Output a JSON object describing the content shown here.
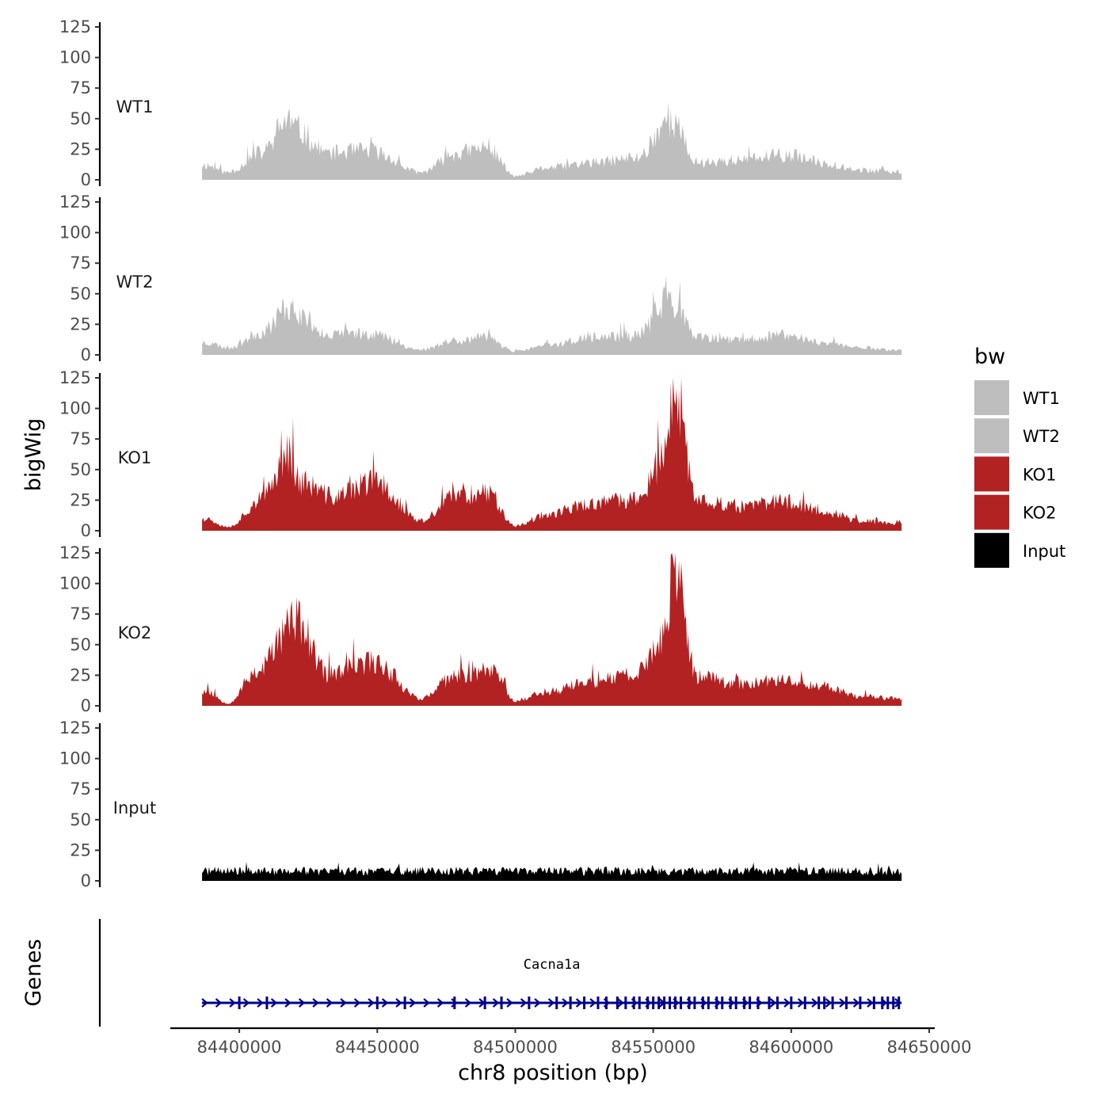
{
  "chart_data": {
    "type": "area",
    "title": "",
    "xlabel": "chr8 position (bp)",
    "ylabel": "bigWig",
    "genes_label": "Genes",
    "xlim": [
      84375000,
      84652000
    ],
    "x_ticks": [
      84400000,
      84450000,
      84500000,
      84550000,
      84600000,
      84650000
    ],
    "x_tick_labels": [
      "84400000",
      "84450000",
      "84500000",
      "84550000",
      "84600000",
      "84650000"
    ],
    "ylim": [
      0,
      125
    ],
    "y_ticks": [
      0,
      25,
      50,
      75,
      100,
      125
    ],
    "y_tick_labels": [
      "0",
      "25",
      "50",
      "75",
      "100",
      "125"
    ],
    "signal_range_bp": [
      84386500,
      84640000
    ],
    "series": [
      {
        "name": "WT1",
        "color": "#bebebe",
        "peaks": [
          [
            84388000,
            12
          ],
          [
            84396000,
            6
          ],
          [
            84408000,
            22
          ],
          [
            84418000,
            50
          ],
          [
            84420000,
            42
          ],
          [
            84432000,
            22
          ],
          [
            84447000,
            24
          ],
          [
            84466000,
            6
          ],
          [
            84479000,
            22
          ],
          [
            84490000,
            26
          ],
          [
            84500000,
            3
          ],
          [
            84512000,
            10
          ],
          [
            84528000,
            14
          ],
          [
            84544000,
            18
          ],
          [
            84556000,
            50
          ],
          [
            84566000,
            14
          ],
          [
            84580000,
            16
          ],
          [
            84598000,
            20
          ],
          [
            84612000,
            14
          ],
          [
            84625000,
            8
          ],
          [
            84638000,
            6
          ]
        ],
        "noise": 0.32,
        "seed": 11
      },
      {
        "name": "WT2",
        "color": "#bebebe",
        "peaks": [
          [
            84388000,
            10
          ],
          [
            84396000,
            6
          ],
          [
            84408000,
            18
          ],
          [
            84418000,
            40
          ],
          [
            84421000,
            32
          ],
          [
            84434000,
            16
          ],
          [
            84447000,
            18
          ],
          [
            84466000,
            4
          ],
          [
            84478000,
            12
          ],
          [
            84490000,
            14
          ],
          [
            84500000,
            3
          ],
          [
            84512000,
            8
          ],
          [
            84528000,
            14
          ],
          [
            84544000,
            16
          ],
          [
            84556000,
            46
          ],
          [
            84566000,
            14
          ],
          [
            84580000,
            12
          ],
          [
            84598000,
            16
          ],
          [
            84612000,
            10
          ],
          [
            84625000,
            6
          ],
          [
            84638000,
            4
          ]
        ],
        "noise": 0.32,
        "seed": 23
      },
      {
        "name": "KO1",
        "color": "#b22222",
        "peaks": [
          [
            84388000,
            10
          ],
          [
            84396000,
            3
          ],
          [
            84408000,
            26
          ],
          [
            84418000,
            64
          ],
          [
            84422000,
            40
          ],
          [
            84434000,
            28
          ],
          [
            84449000,
            40
          ],
          [
            84466000,
            8
          ],
          [
            84478000,
            28
          ],
          [
            84490000,
            32
          ],
          [
            84500000,
            4
          ],
          [
            84512000,
            14
          ],
          [
            84528000,
            22
          ],
          [
            84544000,
            26
          ],
          [
            84555000,
            62
          ],
          [
            84557000,
            110
          ],
          [
            84566000,
            26
          ],
          [
            84582000,
            20
          ],
          [
            84598000,
            24
          ],
          [
            84612000,
            16
          ],
          [
            84625000,
            8
          ],
          [
            84638000,
            6
          ]
        ],
        "noise": 0.3,
        "seed": 37
      },
      {
        "name": "KO2",
        "color": "#b22222",
        "peaks": [
          [
            84388000,
            12
          ],
          [
            84396000,
            2
          ],
          [
            84406000,
            28
          ],
          [
            84420000,
            70
          ],
          [
            84432000,
            26
          ],
          [
            84449000,
            36
          ],
          [
            84466000,
            6
          ],
          [
            84478000,
            24
          ],
          [
            84492000,
            30
          ],
          [
            84500000,
            4
          ],
          [
            84512000,
            12
          ],
          [
            84528000,
            20
          ],
          [
            84544000,
            26
          ],
          [
            84555000,
            60
          ],
          [
            84557000,
            118
          ],
          [
            84566000,
            24
          ],
          [
            84582000,
            18
          ],
          [
            84598000,
            22
          ],
          [
            84612000,
            16
          ],
          [
            84625000,
            8
          ],
          [
            84638000,
            6
          ]
        ],
        "noise": 0.3,
        "seed": 53
      },
      {
        "name": "Input",
        "color": "#000000",
        "peaks": [
          [
            84386500,
            8
          ],
          [
            84500000,
            8
          ],
          [
            84640000,
            8
          ]
        ],
        "noise": 0.45,
        "seed": 71
      }
    ],
    "legend": {
      "title": "bw",
      "position": "right",
      "entries": [
        {
          "label": "WT1",
          "color": "#bebebe"
        },
        {
          "label": "WT2",
          "color": "#bebebe"
        },
        {
          "label": "KO1",
          "color": "#b22222"
        },
        {
          "label": "KO2",
          "color": "#b22222"
        },
        {
          "label": "Input",
          "color": "#000000"
        }
      ]
    },
    "gene": {
      "name": "Cacna1a",
      "start": 84386500,
      "end": 84640000,
      "strand": "+",
      "color": "#00008b",
      "exons": [
        84400000,
        84410000,
        84450000,
        84460000,
        84478000,
        84489000,
        84495000,
        84505000,
        84515000,
        84520000,
        84525000,
        84530000,
        84533000,
        84537000,
        84540000,
        84543000,
        84545000,
        84548000,
        84550000,
        84552000,
        84554000,
        84556000,
        84558000,
        84560000,
        84563000,
        84565000,
        84568000,
        84570000,
        84573000,
        84575000,
        84578000,
        84580000,
        84583000,
        84585000,
        84588000,
        84592000,
        84595000,
        84600000,
        84605000,
        84610000,
        84612000,
        84615000,
        84620000,
        84625000,
        84630000,
        84633000,
        84635000,
        84637000,
        84639000
      ]
    }
  }
}
